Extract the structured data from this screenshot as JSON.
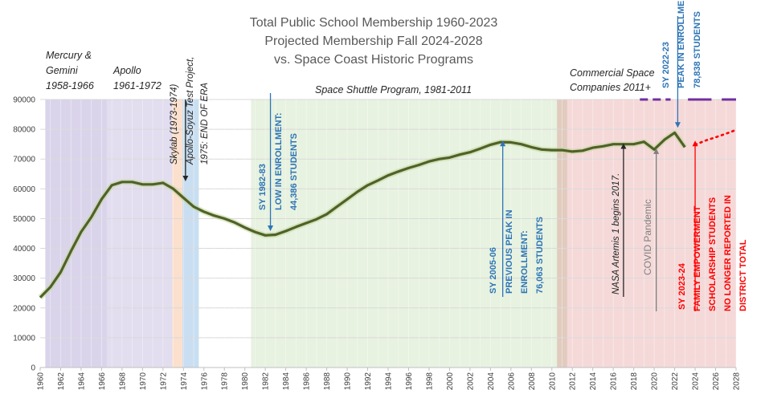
{
  "chart_data": {
    "type": "line",
    "title": [
      "Total Public School Membership 1960-2023",
      "Projected Membership Fall 2024-2028",
      "vs. Space Coast Historic Programs"
    ],
    "xlim": [
      1960,
      2028
    ],
    "ylim": [
      0,
      90000
    ],
    "y_ticks": [
      0,
      10000,
      20000,
      30000,
      40000,
      50000,
      60000,
      70000,
      80000,
      90000
    ],
    "x_ticks": [
      1960,
      1962,
      1964,
      1966,
      1968,
      1970,
      1972,
      1974,
      1976,
      1978,
      1980,
      1982,
      1984,
      1986,
      1988,
      1990,
      1992,
      1994,
      1996,
      1998,
      2000,
      2002,
      2004,
      2006,
      2008,
      2010,
      2012,
      2014,
      2016,
      2018,
      2020,
      2022,
      2024,
      2026,
      2028
    ],
    "series": [
      {
        "name": "Total Public School Membership",
        "color": "#4f6228",
        "x": [
          1960,
          1961,
          1962,
          1963,
          1964,
          1965,
          1966,
          1967,
          1968,
          1969,
          1970,
          1971,
          1972,
          1973,
          1974,
          1975,
          1976,
          1977,
          1978,
          1979,
          1980,
          1981,
          1982,
          1983,
          1984,
          1985,
          1986,
          1987,
          1988,
          1989,
          1990,
          1991,
          1992,
          1993,
          1994,
          1995,
          1996,
          1997,
          1998,
          1999,
          2000,
          2001,
          2002,
          2003,
          2004,
          2005,
          2006,
          2007,
          2008,
          2009,
          2010,
          2011,
          2012,
          2013,
          2014,
          2015,
          2016,
          2017,
          2018,
          2019,
          2020,
          2021,
          2022,
          2023
        ],
        "values": [
          23500,
          27000,
          32000,
          39000,
          45500,
          50500,
          56500,
          61200,
          62300,
          62300,
          61500,
          61500,
          62000,
          60000,
          57000,
          54000,
          52300,
          51000,
          50000,
          48700,
          47000,
          45500,
          44386,
          44600,
          45800,
          47200,
          48500,
          49800,
          51500,
          54000,
          56500,
          59000,
          61200,
          62800,
          64500,
          65800,
          67000,
          68000,
          69200,
          70000,
          70500,
          71500,
          72300,
          73500,
          74800,
          75700,
          75600,
          75000,
          74000,
          73200,
          73000,
          73000,
          72500,
          72800,
          73800,
          74300,
          75000,
          75000,
          75000,
          75800,
          73200,
          76500,
          78838,
          74000
        ]
      },
      {
        "name": "Projected Membership Fall 2024-2028",
        "color": "#ff0000",
        "dash": "dotted",
        "x": [
          2024,
          2025,
          2026,
          2027,
          2028
        ],
        "values": [
          74800,
          76200,
          77300,
          78500,
          79800
        ]
      }
    ],
    "bands": [
      {
        "name": "Mercury & Gemini",
        "from": 1960.5,
        "to": 1966.5,
        "color": "#7b63b6",
        "opacity": 0.28
      },
      {
        "name": "Apollo",
        "from": 1966.5,
        "to": 1972.9,
        "color": "#7b63b6",
        "opacity": 0.22
      },
      {
        "name": "Skylab",
        "from": 1972.9,
        "to": 1973.9,
        "color": "#f4b183",
        "opacity": 0.4
      },
      {
        "name": "Apollo-Soyuz",
        "from": 1973.9,
        "to": 1975.5,
        "color": "#9dc3e6",
        "opacity": 0.55
      },
      {
        "name": "Space Shuttle",
        "from": 1980.6,
        "to": 2010.5,
        "color": "#a9d18e",
        "opacity": 0.28
      },
      {
        "name": "Transition",
        "from": 2010.5,
        "to": 2011.5,
        "color": "#c9a08a",
        "opacity": 0.55
      },
      {
        "name": "Commercial Space",
        "from": 2011.5,
        "to": 2028,
        "color": "#e69a9a",
        "opacity": 0.38
      }
    ],
    "purple_segments_color": "#7030a0",
    "era_labels": {
      "mercury_1": "Mercury &",
      "mercury_2": "Gemini",
      "mercury_3": "1958-1966",
      "apollo_1": "Apollo",
      "apollo_2": "1961-1972",
      "shuttle": "Space Shuttle Program, 1981-2011",
      "commercial_1": "Commercial Space",
      "commercial_2": "Companies 2011+"
    },
    "annotations": {
      "skylab": "Skylab (1973-1974)",
      "soyuz_1": "Apollo-Soyuz Test Project,",
      "soyuz_2": "1975: END OF ERA",
      "low_1": "SY 1982-83",
      "low_2": "LOW IN ENROLLMENT:",
      "low_3": "44,386 STUDENTS",
      "prev_1": "SY 2005-06",
      "prev_2": "PREVIOUS PEAK IN",
      "prev_3": "ENROLLMENT:",
      "prev_4": "76,063 STUDENTS",
      "artemis": "NASA Artemis 1 begins 2017.",
      "covid": "COVID Pandemic",
      "peak_1": "SY 2022-23",
      "peak_2": "PEAK IN ENROLLMENT:",
      "peak_3": "78,838  STUDENTS",
      "fam_1": "SY 2023-24",
      "fam_2": "FAMILY EMPOWERMENT",
      "fam_3": "SCHOLARSHIP STUDENTS",
      "fam_4": "NO LONGER REPORTED IN",
      "fam_5": "DISTRICT TOTAL"
    },
    "colors": {
      "blue_note": "#2e75b6",
      "red_note": "#ff0000",
      "gray_note": "#7f7f7f",
      "dark_note": "#262626"
    }
  }
}
